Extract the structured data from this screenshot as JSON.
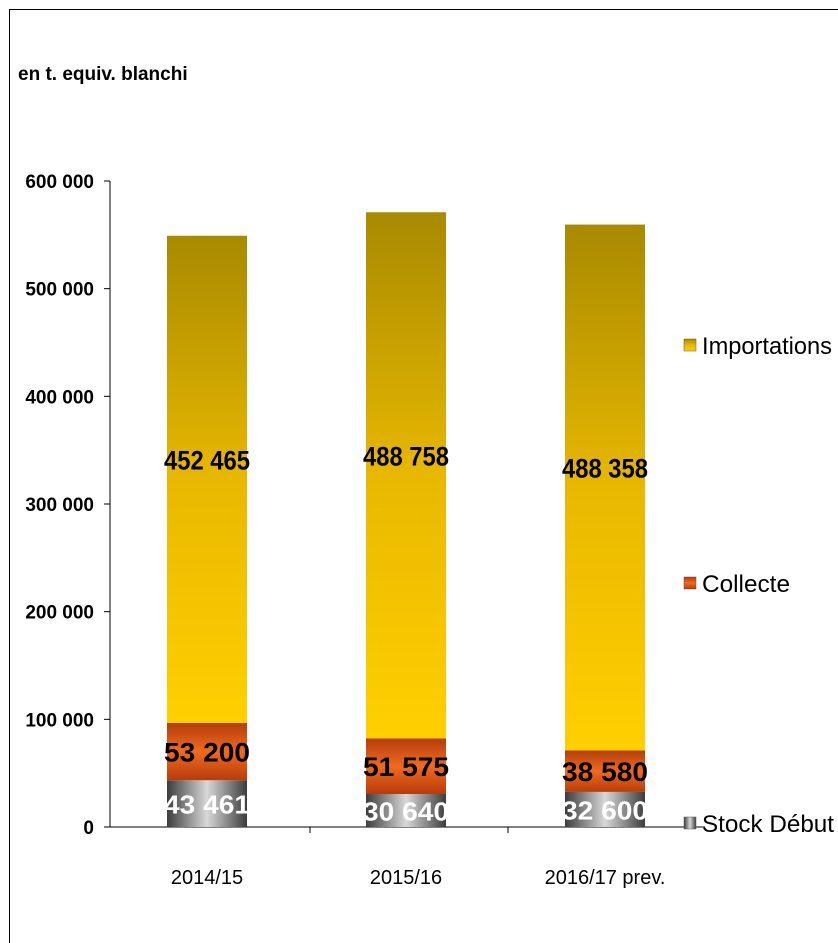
{
  "chart_data": {
    "type": "bar",
    "stacked": true,
    "ylabel": "en t. equiv. blanchi",
    "ylim": [
      0,
      600000
    ],
    "yticks": [
      "600 000",
      "500 000",
      "400 000",
      "300 000",
      "200 000",
      "100 000",
      "0"
    ],
    "categories": [
      "2014/15",
      "2015/16",
      "2016/17 prev."
    ],
    "series": [
      {
        "name": "Stock Début",
        "values": [
          43461,
          30640,
          32600
        ],
        "labels": [
          "43 461",
          "30 640",
          "32 600"
        ],
        "color": "#7a7a7a"
      },
      {
        "name": "Collecte",
        "values": [
          53200,
          51575,
          38580
        ],
        "labels": [
          "53 200",
          "51 575",
          "38 580"
        ],
        "color": "#e0521a"
      },
      {
        "name": "Importations",
        "values": [
          452465,
          488758,
          488358
        ],
        "labels": [
          "452 465",
          "488 758",
          "488 358"
        ],
        "color": "#f2c200"
      }
    ],
    "legend_order": [
      "Importations",
      "Collecte",
      "Stock Début"
    ],
    "legend_position": "right",
    "grid": false
  }
}
